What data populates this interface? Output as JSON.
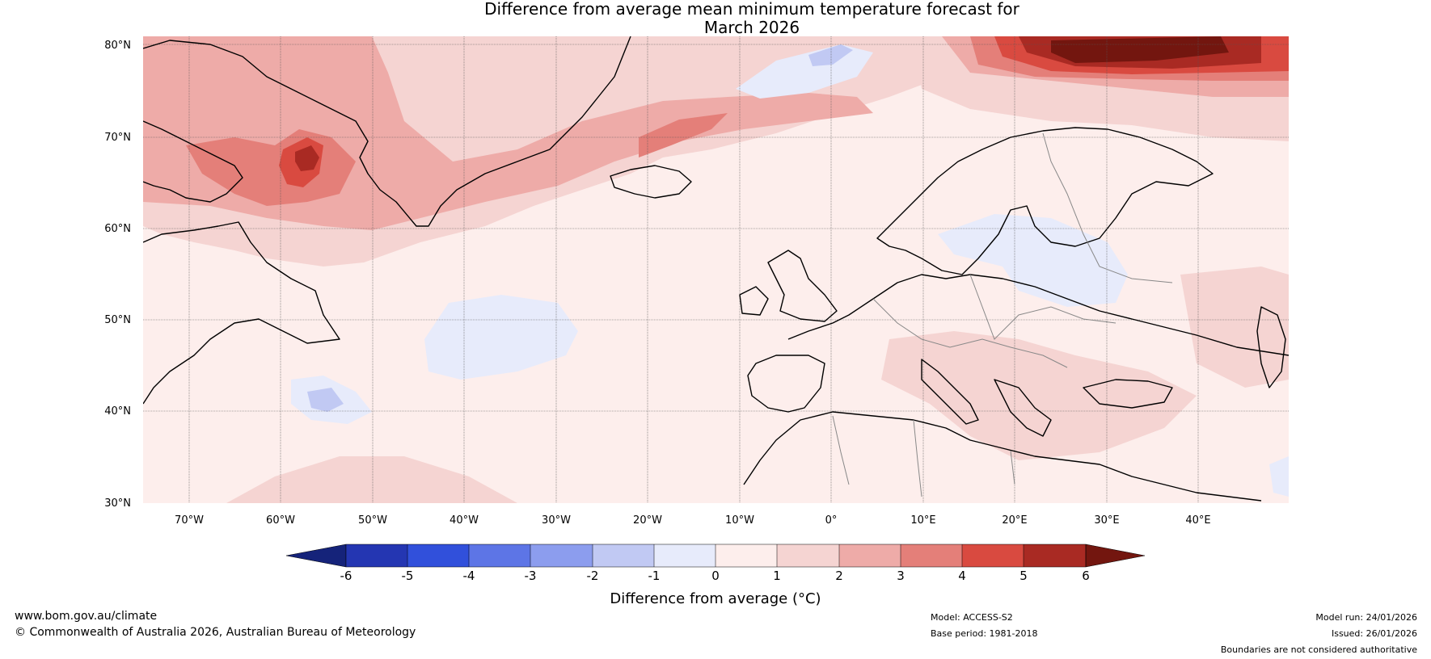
{
  "title": {
    "line1": "Difference from average mean minimum temperature forecast for",
    "line2": "March 2026"
  },
  "map": {
    "lat_labels": [
      "80°N",
      "70°N",
      "60°N",
      "50°N",
      "40°N",
      "30°N"
    ],
    "lon_labels": [
      "70°W",
      "60°W",
      "50°W",
      "40°W",
      "30°W",
      "20°W",
      "10°W",
      "0°",
      "10°E",
      "20°E",
      "30°E",
      "40°E"
    ],
    "ocean_color": "#fdeeec",
    "land_line_color": "#000000",
    "border_color": "#888888"
  },
  "colorbar": {
    "title": "Difference from average (°C)",
    "tick_labels": [
      "-6",
      "-5",
      "-4",
      "-3",
      "-2",
      "-1",
      "0",
      "1",
      "2",
      "3",
      "4",
      "5",
      "6"
    ],
    "colors": [
      "#15237a",
      "#2436b2",
      "#3150db",
      "#5d75e6",
      "#8c9dee",
      "#c1c9f3",
      "#e7ebfb",
      "#fdeeec",
      "#f5d4d2",
      "#eeaba8",
      "#e47f79",
      "#d94a40",
      "#a92a23",
      "#73160f"
    ]
  },
  "footer": {
    "website": "www.bom.gov.au/climate",
    "copyright": "© Commonwealth of Australia 2026, Australian Bureau of Meteorology",
    "model": "Model: ACCESS-S2",
    "base_period": "Base period: 1981-2018",
    "model_run": "Model run: 24/01/2026",
    "issued": "Issued: 26/01/2026",
    "disclaimer": "Boundaries are not considered authoritative"
  }
}
